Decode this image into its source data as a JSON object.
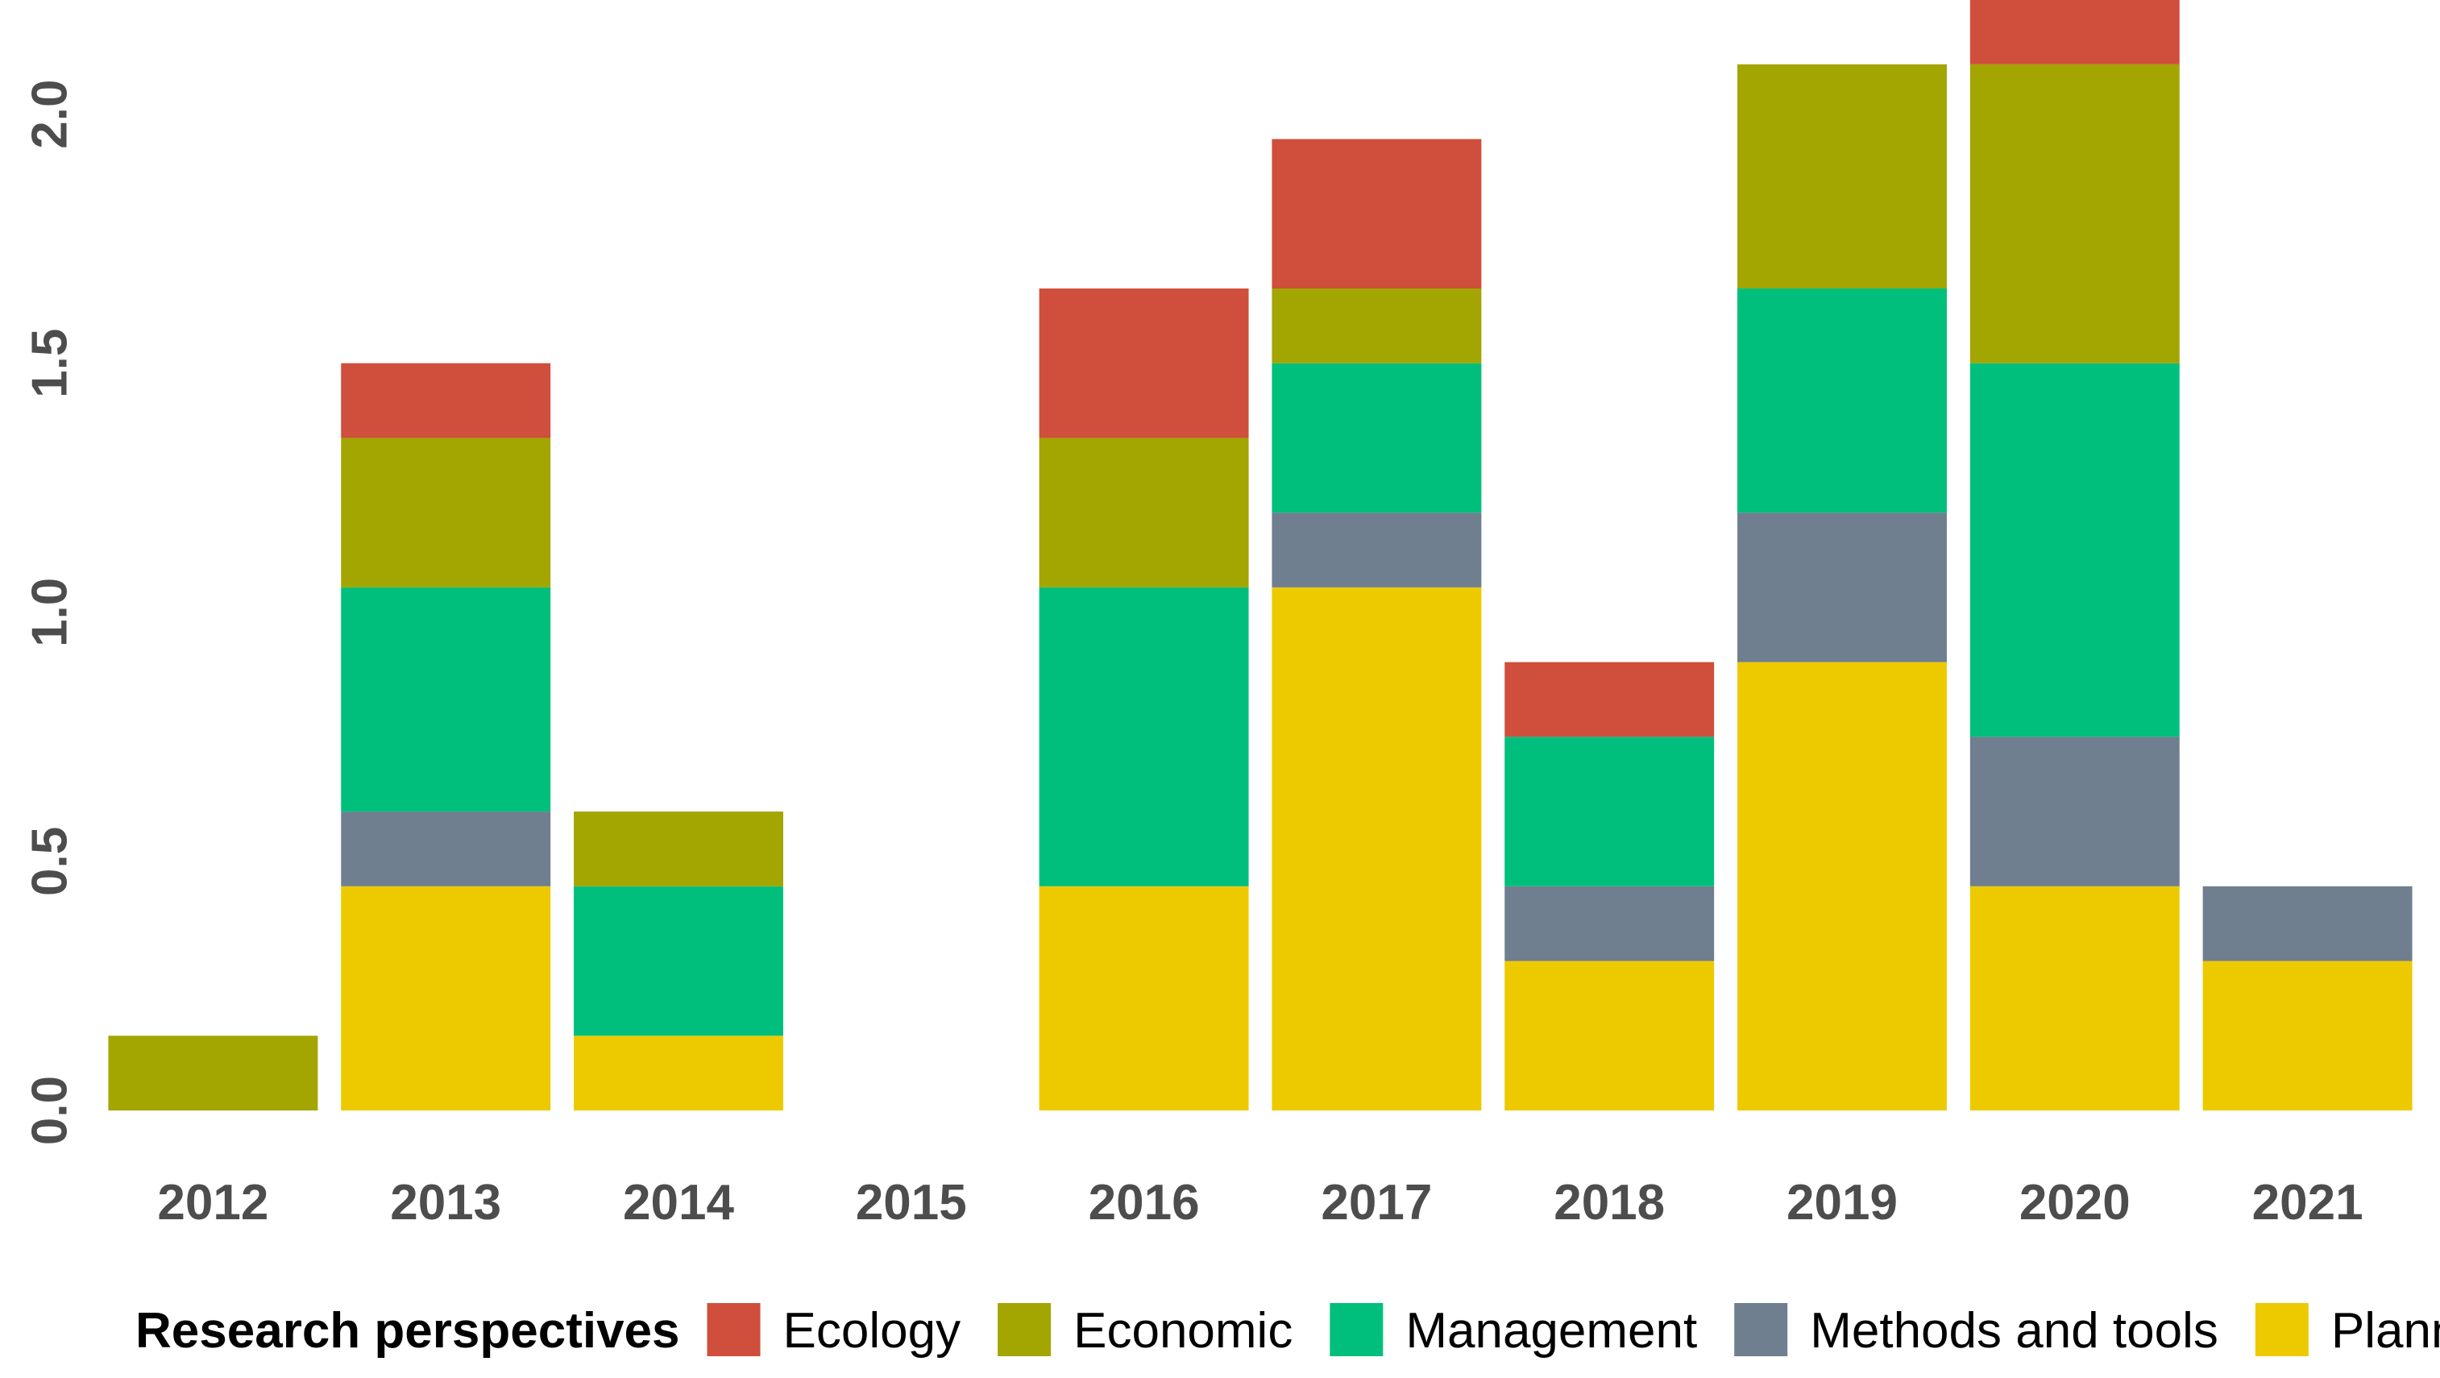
{
  "chart_data": {
    "type": "bar",
    "stacked": true,
    "title": "",
    "xlabel": "",
    "ylabel": "",
    "categories": [
      "2012",
      "2013",
      "2014",
      "2015",
      "2016",
      "2017",
      "2018",
      "2019",
      "2020",
      "2021"
    ],
    "ylim": [
      0,
      2.2
    ],
    "y_ticks": [
      "0.0",
      "0.5",
      "1.0",
      "1.5",
      "2.0"
    ],
    "y_tick_values": [
      0,
      0.5,
      1.0,
      1.5,
      2.0
    ],
    "grid": false,
    "legend": {
      "title": "Research perspectives",
      "position": "bottom"
    },
    "series": [
      {
        "name": "Planning",
        "color": "#EDCA00",
        "values": [
          0,
          0.45,
          0.15,
          0,
          0.45,
          1.05,
          0.3,
          0.9,
          0.45,
          0.3
        ]
      },
      {
        "name": "Methods and tools",
        "color": "#6F7F8F",
        "values": [
          0,
          0.15,
          0,
          0,
          0,
          0.15,
          0.15,
          0.3,
          0.3,
          0.15
        ]
      },
      {
        "name": "Management",
        "color": "#00BF7D",
        "values": [
          0,
          0.45,
          0.3,
          0,
          0.6,
          0.3,
          0.3,
          0.45,
          0.75,
          0
        ]
      },
      {
        "name": "Economic",
        "color": "#A3A500",
        "values": [
          0.15,
          0.3,
          0.15,
          0,
          0.3,
          0.15,
          0,
          0.45,
          0.6,
          0
        ]
      },
      {
        "name": "Ecology",
        "color": "#CF4F3C",
        "values": [
          0,
          0.15,
          0,
          0,
          0.3,
          0.3,
          0.15,
          0,
          0.15,
          0
        ]
      }
    ],
    "legend_order": [
      "Ecology",
      "Economic",
      "Management",
      "Methods and tools",
      "Planning"
    ]
  }
}
